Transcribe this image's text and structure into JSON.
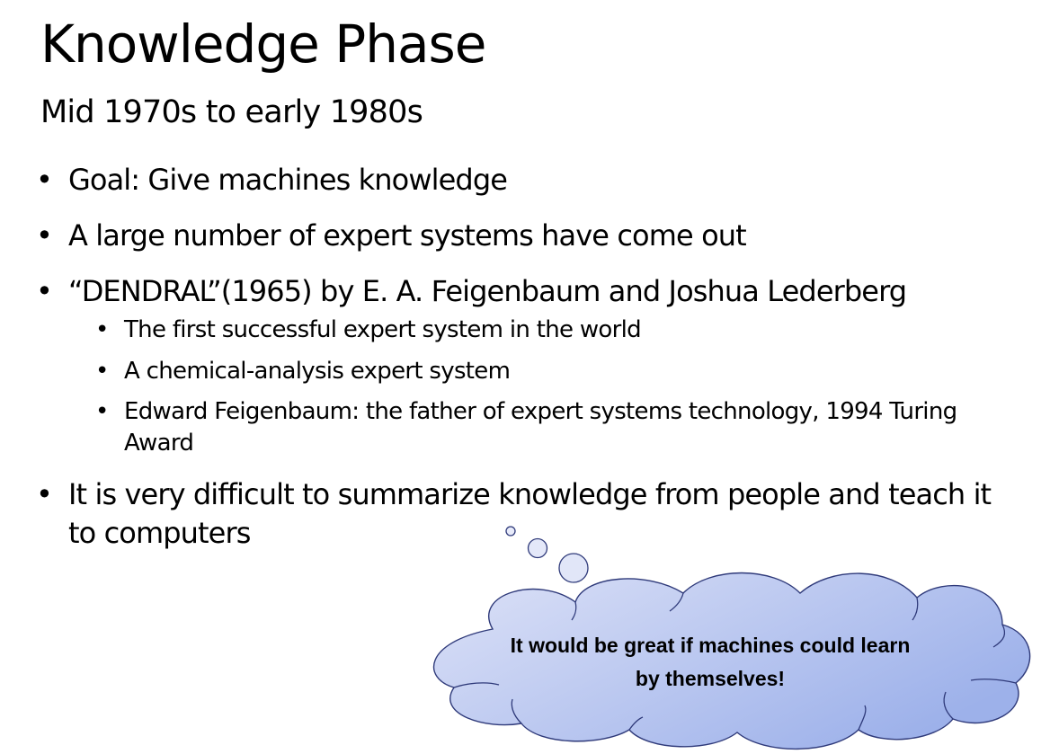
{
  "slide": {
    "title": "Knowledge Phase",
    "subtitle": "Mid 1970s to early 1980s",
    "bullets": [
      {
        "text": "Goal: Give machines knowledge"
      },
      {
        "text": "A large number of expert systems have come out"
      },
      {
        "text": "“DENDRAL”(1965) by E. A. Feigenbaum and Joshua Lederberg",
        "children": [
          "The first successful expert system in the world",
          "A chemical-analysis expert system",
          "Edward Feigenbaum: the father of expert systems technology, 1994 Turing Award"
        ]
      },
      {
        "text": "It is very difficult to summarize knowledge from people and teach it to computers"
      }
    ],
    "callout": {
      "text": "It would be great if machines could learn by themselves!",
      "fill_top": "#dde2f7",
      "fill_bottom": "#9db1ea",
      "outline": "#2f3a7a"
    }
  }
}
